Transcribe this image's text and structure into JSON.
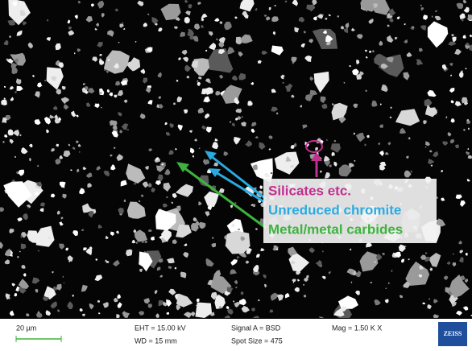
{
  "annotations": {
    "labels": [
      "Silicates etc.",
      "Unreduced chromite",
      "Metal/metal carbides"
    ]
  },
  "info_bar": {
    "scale": "20 µm",
    "eht": "EHT = 15.00 kV",
    "wd": "WD = 15 mm",
    "signal": "Signal A = BSD",
    "spot": "Spot Size = 475",
    "mag": "Mag =   1.50 K X",
    "logo": "ZEISS"
  }
}
